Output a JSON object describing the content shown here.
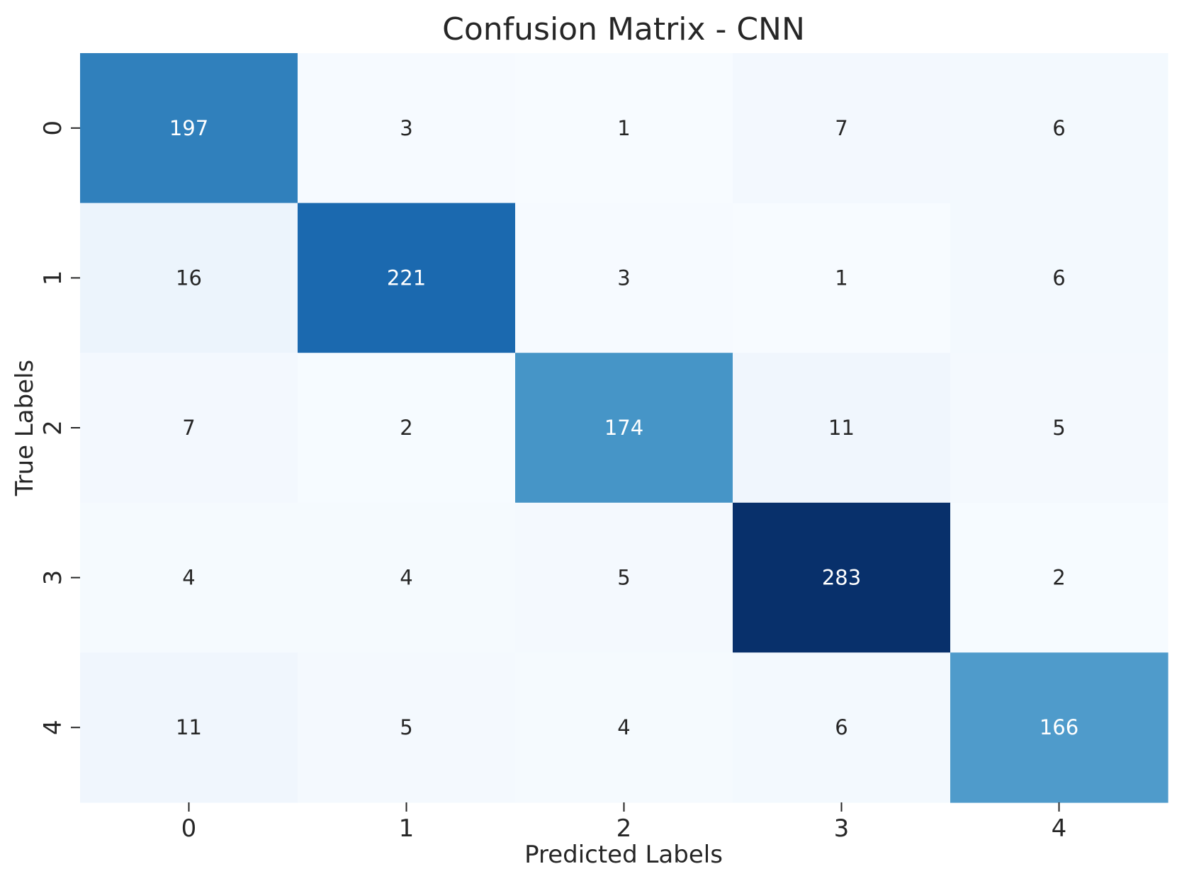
{
  "chart_data": {
    "type": "heatmap",
    "title": "Confusion Matrix - CNN",
    "xlabel": "Predicted Labels",
    "ylabel": "True Labels",
    "x_categories": [
      "0",
      "1",
      "2",
      "3",
      "4"
    ],
    "y_categories": [
      "0",
      "1",
      "2",
      "3",
      "4"
    ],
    "values": [
      [
        197,
        3,
        1,
        7,
        6
      ],
      [
        16,
        221,
        3,
        1,
        6
      ],
      [
        7,
        2,
        174,
        11,
        5
      ],
      [
        4,
        4,
        5,
        283,
        2
      ],
      [
        11,
        5,
        4,
        6,
        166
      ]
    ],
    "colormap": "Blues",
    "colorbar": false,
    "annotations": true,
    "text_colors": {
      "dark": "#262626",
      "light": "#ffffff"
    }
  }
}
